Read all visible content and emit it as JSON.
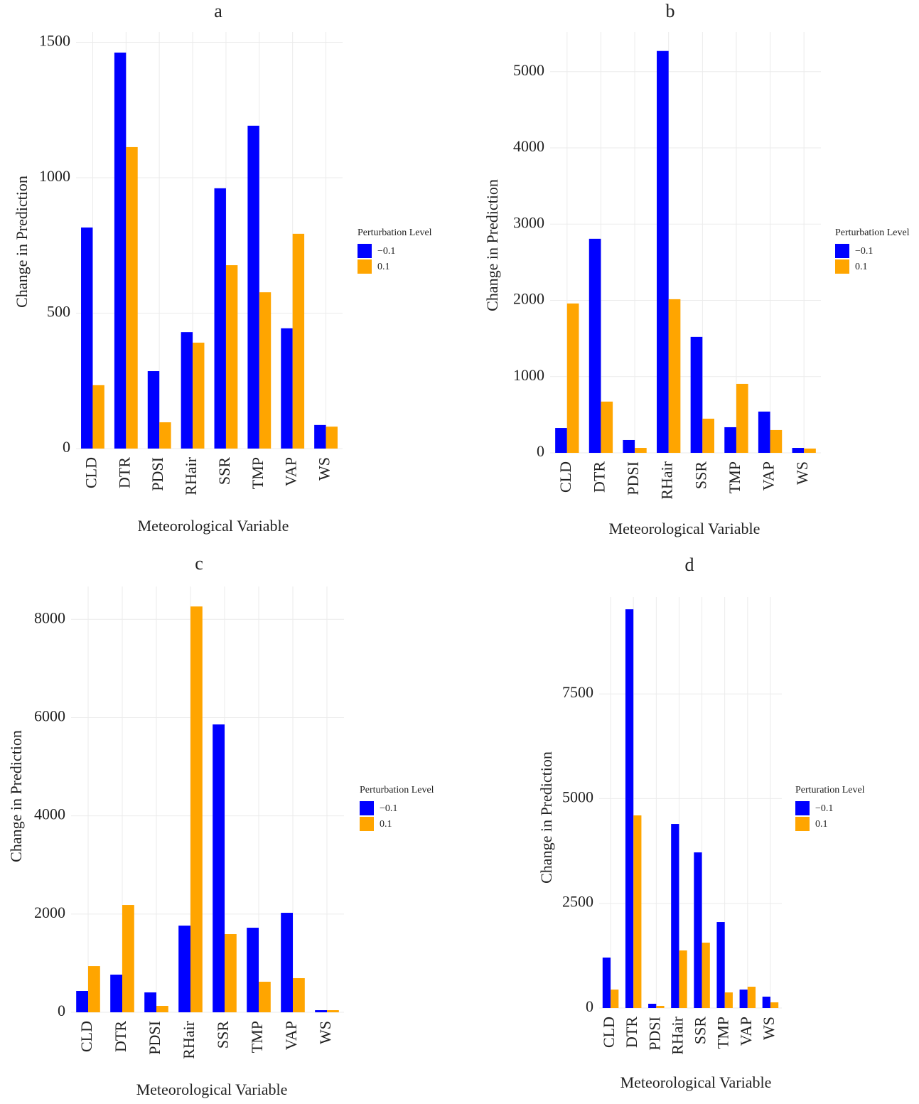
{
  "chart_data": [
    {
      "type": "bar",
      "title": "a",
      "xlabel": "Meteorological Variable",
      "ylabel": "Change in Prediction",
      "legend_title": "Perturbation Level",
      "categories": [
        "CLD",
        "DTR",
        "PDSI",
        "RHair",
        "SSR",
        "TMP",
        "VAP",
        "WS"
      ],
      "series": [
        {
          "name": "−0.1",
          "color": "#0000ff",
          "values": [
            816,
            1462,
            286,
            430,
            961,
            1192,
            444,
            87
          ]
        },
        {
          "name": "0.1",
          "color": "#ffa500",
          "values": [
            234,
            1113,
            97,
            391,
            677,
            577,
            793,
            81
          ]
        }
      ],
      "ylim": [
        0,
        1538
      ],
      "yticks": [
        0,
        500,
        1000,
        1500
      ],
      "grid": true
    },
    {
      "type": "bar",
      "title": "b",
      "xlabel": "Meteorological Variable",
      "ylabel": "Change in Prediction",
      "legend_title": "Perturbation Level",
      "categories": [
        "CLD",
        "DTR",
        "PDSI",
        "RHair",
        "SSR",
        "TMP",
        "VAP",
        "WS"
      ],
      "series": [
        {
          "name": "−0.1",
          "color": "#0000ff",
          "values": [
            326,
            2808,
            168,
            5271,
            1521,
            336,
            541,
            65
          ]
        },
        {
          "name": "0.1",
          "color": "#ffa500",
          "values": [
            1959,
            672,
            65,
            2015,
            448,
            905,
            299,
            56
          ]
        }
      ],
      "ylim": [
        0,
        5520
      ],
      "yticks": [
        0,
        1000,
        2000,
        3000,
        4000,
        5000
      ],
      "grid": true
    },
    {
      "type": "bar",
      "title": "c",
      "xlabel": "Meteorological Variable",
      "ylabel": "Change in Prediction",
      "legend_title": "Perturbation Level",
      "categories": [
        "CLD",
        "DTR",
        "PDSI",
        "RHair",
        "SSR",
        "TMP",
        "VAP",
        "WS"
      ],
      "series": [
        {
          "name": "−0.1",
          "color": "#0000ff",
          "values": [
            434,
            767,
            405,
            1765,
            5861,
            1722,
            2026,
            43
          ]
        },
        {
          "name": "0.1",
          "color": "#ffa500",
          "values": [
            940,
            2185,
            130,
            8263,
            1592,
            622,
            695,
            43
          ]
        }
      ],
      "ylim": [
        0,
        8670
      ],
      "yticks": [
        0,
        2000,
        4000,
        6000,
        8000
      ],
      "grid": true
    },
    {
      "type": "bar",
      "title": "d",
      "xlabel": "Meteorological Variable",
      "ylabel": "Change in Prediction",
      "legend_title": "Perturation Level",
      "categories": [
        "CLD",
        "DTR",
        "PDSI",
        "RHair",
        "SSR",
        "TMP",
        "VAP",
        "WS"
      ],
      "series": [
        {
          "name": "−0.1",
          "color": "#0000ff",
          "values": [
            1205,
            9520,
            102,
            4395,
            3716,
            2053,
            441,
            272
          ]
        },
        {
          "name": "0.1",
          "color": "#ffa500",
          "values": [
            441,
            4599,
            51,
            1375,
            1561,
            373,
            509,
            136
          ]
        }
      ],
      "ylim": [
        0,
        9810
      ],
      "yticks": [
        0,
        2500,
        5000,
        7500
      ],
      "grid": true
    }
  ]
}
